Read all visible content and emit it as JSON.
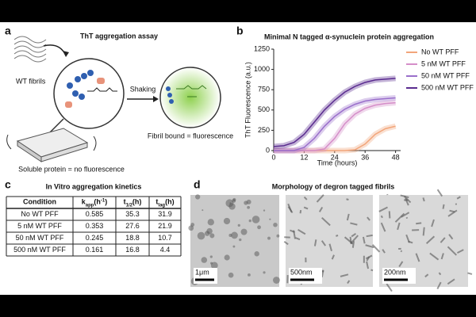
{
  "panel_a": {
    "letter": "a",
    "title": "ThT aggregation assay",
    "fibrils": "WT fibrils",
    "shaking": "Shaking",
    "bound": "Fibril bound = fluorescence",
    "soluble": "Soluble protein = no fluorescence"
  },
  "chart_data": {
    "letter": "b",
    "type": "line",
    "title": "Minimal N tagged α-synuclein protein aggregation",
    "x_label": "Time (hours)",
    "y_label": "ThT Fluorescence (a.u.)",
    "x": [
      0,
      4,
      8,
      12,
      16,
      20,
      24,
      28,
      32,
      36,
      40,
      44,
      48
    ],
    "series": [
      {
        "name": "No WT PFF",
        "color": "#f2a57a",
        "values": [
          0,
          0,
          0,
          0,
          0,
          0,
          0,
          0,
          10,
          80,
          200,
          270,
          300
        ]
      },
      {
        "name": "5 nM WT PFF",
        "color": "#d58ec9",
        "values": [
          0,
          0,
          0,
          0,
          0,
          20,
          150,
          330,
          450,
          520,
          560,
          580,
          590
        ]
      },
      {
        "name": "50 nM WT PFF",
        "color": "#9a6fcb",
        "values": [
          0,
          0,
          0,
          40,
          150,
          300,
          420,
          510,
          570,
          610,
          630,
          640,
          650
        ]
      },
      {
        "name": "500 nM WT PFF",
        "color": "#5a2b8f",
        "values": [
          50,
          60,
          100,
          200,
          350,
          500,
          620,
          720,
          790,
          840,
          870,
          880,
          890
        ]
      }
    ],
    "xlim": [
      0,
      50
    ],
    "xticks": [
      0,
      12,
      24,
      36,
      48
    ],
    "ylim": [
      0,
      1250
    ],
    "yticks": [
      0,
      250,
      500,
      750,
      1000,
      1250
    ],
    "legend": "right"
  },
  "table": {
    "letter": "c",
    "title": "In Vitro aggregation kinetics",
    "header": [
      [
        {
          "t": "Condition"
        }
      ],
      [
        {
          "t": "k"
        },
        {
          "sub": "app"
        },
        {
          "t": "(h"
        },
        {
          "sup": "-1"
        },
        {
          "t": ")"
        }
      ],
      [
        {
          "t": "t"
        },
        {
          "sub": "1/2"
        },
        {
          "t": "(h)"
        }
      ],
      [
        {
          "t": "t"
        },
        {
          "sub": "lag"
        },
        {
          "t": "(h)"
        }
      ]
    ],
    "rows": [
      [
        "No WT PFF",
        0.585,
        35.3,
        31.9
      ],
      [
        "5 nM WT PFF",
        0.353,
        27.6,
        21.9
      ],
      [
        "50 nM WT PFF",
        0.245,
        18.8,
        10.7
      ],
      [
        "500 nM WT PFF",
        0.161,
        16.8,
        4.4
      ]
    ]
  },
  "panel_d": {
    "letter": "d",
    "title": "Morphology of degron tagged fibrils",
    "scales": [
      "1μm",
      "500nm",
      "200nm"
    ]
  }
}
